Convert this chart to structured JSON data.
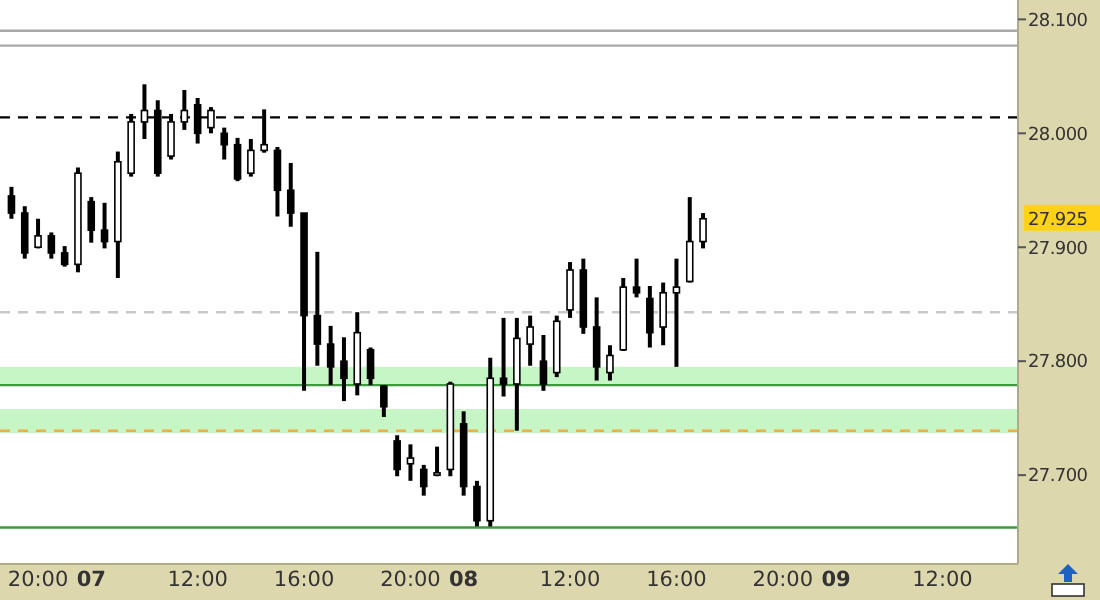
{
  "chart_data": {
    "type": "candlestick",
    "categories": [
      null,
      null,
      "20:00",
      null,
      null,
      null,
      "07",
      null,
      null,
      null,
      null,
      null,
      null,
      null,
      "12:00",
      null,
      null,
      null,
      null,
      null,
      null,
      null,
      "16:00",
      null,
      null,
      null,
      null,
      null,
      null,
      null,
      "20:00",
      null,
      null,
      null,
      "08",
      null,
      null,
      null,
      null,
      null,
      null,
      null,
      "12:00",
      null,
      null,
      null,
      null,
      null,
      null,
      null,
      "16:00",
      null,
      null,
      null,
      null,
      null,
      null,
      null,
      "20:00",
      null,
      null,
      null,
      "09",
      null,
      null,
      null,
      null,
      null,
      null,
      null,
      "12:00",
      null,
      null,
      null,
      null,
      null
    ],
    "ohlc": [
      [
        27.945,
        27.953,
        27.925,
        27.93
      ],
      [
        27.93,
        27.936,
        27.89,
        27.895
      ],
      [
        27.9,
        27.925,
        27.899,
        27.91
      ],
      [
        27.91,
        27.913,
        27.89,
        27.895
      ],
      [
        27.895,
        27.901,
        27.883,
        27.885
      ],
      [
        27.885,
        27.97,
        27.878,
        27.965
      ],
      [
        27.94,
        27.944,
        27.904,
        27.915
      ],
      [
        27.915,
        27.939,
        27.899,
        27.905
      ],
      [
        27.905,
        27.984,
        27.873,
        27.975
      ],
      [
        27.965,
        28.017,
        27.962,
        28.01
      ],
      [
        28.01,
        28.043,
        27.995,
        28.02
      ],
      [
        28.02,
        28.029,
        27.962,
        27.965
      ],
      [
        27.98,
        28.017,
        27.977,
        28.01
      ],
      [
        28.01,
        28.038,
        28.003,
        28.02
      ],
      [
        28.025,
        28.031,
        27.991,
        28.0
      ],
      [
        28.005,
        28.023,
        28.0,
        28.02
      ],
      [
        28.0,
        28.005,
        27.977,
        27.99
      ],
      [
        27.99,
        27.996,
        27.958,
        27.96
      ],
      [
        27.965,
        27.995,
        27.962,
        27.985
      ],
      [
        27.985,
        28.021,
        27.983,
        27.99
      ],
      [
        27.985,
        27.988,
        27.927,
        27.95
      ],
      [
        27.95,
        27.974,
        27.918,
        27.93
      ],
      [
        27.93,
        27.93,
        27.774,
        27.84
      ],
      [
        27.84,
        27.896,
        27.796,
        27.815
      ],
      [
        27.815,
        27.831,
        27.779,
        27.795
      ],
      [
        27.8,
        27.821,
        27.765,
        27.785
      ],
      [
        27.78,
        27.843,
        27.77,
        27.825
      ],
      [
        27.81,
        27.812,
        27.779,
        27.785
      ],
      [
        27.778,
        27.779,
        27.751,
        27.76
      ],
      [
        27.73,
        27.735,
        27.699,
        27.705
      ],
      [
        27.71,
        27.727,
        27.695,
        27.715
      ],
      [
        27.705,
        27.709,
        27.682,
        27.69
      ],
      [
        27.7,
        27.725,
        27.699,
        27.702
      ],
      [
        27.705,
        27.782,
        27.699,
        27.78
      ],
      [
        27.745,
        27.756,
        27.682,
        27.69
      ],
      [
        27.69,
        27.695,
        27.655,
        27.66
      ],
      [
        27.66,
        27.803,
        27.655,
        27.785
      ],
      [
        27.785,
        27.838,
        27.769,
        27.78
      ],
      [
        27.78,
        27.838,
        27.739,
        27.82
      ],
      [
        27.815,
        27.84,
        27.796,
        27.83
      ],
      [
        27.8,
        27.823,
        27.774,
        27.78
      ],
      [
        27.79,
        27.84,
        27.786,
        27.835
      ],
      [
        27.845,
        27.887,
        27.838,
        27.88
      ],
      [
        27.88,
        27.89,
        27.824,
        27.83
      ],
      [
        27.83,
        27.856,
        27.783,
        27.795
      ],
      [
        27.79,
        27.814,
        27.783,
        27.805
      ],
      [
        27.81,
        27.873,
        27.809,
        27.865
      ],
      [
        27.865,
        27.89,
        27.856,
        27.86
      ],
      [
        27.855,
        27.866,
        27.812,
        27.825
      ],
      [
        27.83,
        27.869,
        27.814,
        27.86
      ],
      [
        27.86,
        27.89,
        27.795,
        27.865
      ],
      [
        27.87,
        27.944,
        27.869,
        27.905
      ],
      [
        27.905,
        27.93,
        27.899,
        27.925
      ],
      null,
      null,
      null,
      null,
      null,
      null,
      null,
      null,
      null,
      null,
      null,
      null,
      null,
      null,
      null,
      null,
      null,
      null,
      null,
      null,
      null,
      null,
      null
    ],
    "ylim": [
      27.622,
      28.117
    ],
    "yticks": [
      {
        "value": 27.7,
        "label": "27.700"
      },
      {
        "value": 27.8,
        "label": "27.800"
      },
      {
        "value": 27.9,
        "label": "27.900"
      },
      {
        "value": 28.0,
        "label": "28.000"
      },
      {
        "value": 28.1,
        "label": "28.100"
      }
    ],
    "ref_lines": [
      {
        "axis": "y",
        "value": 28.09,
        "color": "#a8a8a8",
        "line_style": "solid"
      },
      {
        "axis": "y",
        "value": 28.077,
        "color": "#a8a8a8",
        "line_style": "solid"
      },
      {
        "axis": "y",
        "value": 28.014,
        "color": "#000000",
        "line_style": "dashed"
      },
      {
        "axis": "y",
        "value": 27.843,
        "color": "#c8c8c8",
        "line_style": "dashed"
      },
      {
        "axis": "y",
        "value": 27.779,
        "color": "#3c9a3c",
        "line_style": "solid"
      },
      {
        "axis": "y",
        "value": 27.739,
        "color": "#f0b040",
        "line_style": "dashed"
      },
      {
        "axis": "y",
        "value": 27.654,
        "color": "#3c9a3c",
        "line_style": "solid"
      }
    ],
    "bands": [
      {
        "axis": "y",
        "from": 27.779,
        "to": 27.795,
        "color": "#c6f5c6"
      },
      {
        "axis": "y",
        "from": 27.737,
        "to": 27.758,
        "color": "#c6f5c6"
      }
    ],
    "annotations": [
      "27.925"
    ],
    "grid": false
  }
}
